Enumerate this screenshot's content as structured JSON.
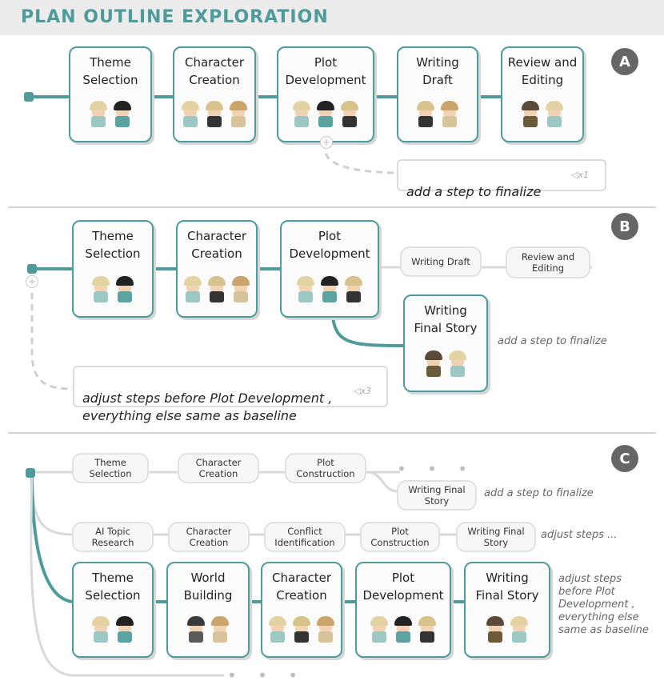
{
  "title": "PLAN OUTLINE EXPLORATION",
  "colors": {
    "accent": "#4f9b9b",
    "gray_line": "#d9d9d9",
    "badge": "#666666"
  },
  "sections": {
    "a": {
      "badge": "A",
      "nodes": [
        {
          "label": "Theme\nSelection",
          "agents": [
            "blonde",
            "dark"
          ]
        },
        {
          "label": "Character\nCreation",
          "agents": [
            "blonde",
            "bald",
            "spiky"
          ]
        },
        {
          "label": "Plot\nDevelopment",
          "agents": [
            "blonde",
            "dark",
            "bald"
          ]
        },
        {
          "label": "Writing\nDraft",
          "agents": [
            "bald",
            "spiky"
          ]
        },
        {
          "label": "Review and\nEditing",
          "agents": [
            "brown",
            "blonde"
          ]
        }
      ],
      "prompt": "add a step to finalize",
      "send": "x1"
    },
    "b": {
      "badge": "B",
      "nodes": [
        {
          "label": "Theme\nSelection",
          "agents": [
            "blonde",
            "dark"
          ]
        },
        {
          "label": "Character\nCreation",
          "agents": [
            "blonde",
            "bald",
            "spiky"
          ]
        },
        {
          "label": "Plot\nDevelopment",
          "agents": [
            "blonde",
            "dark",
            "bald"
          ]
        },
        {
          "label": "Writing\nFinal Story",
          "agents": [
            "brown",
            "blonde"
          ]
        }
      ],
      "pills": [
        "Writing Draft",
        "Review and\nEditing"
      ],
      "note": "add a step to finalize",
      "prompt": "adjust steps before Plot Development ,\neverything else same as baseline",
      "send": "x3"
    },
    "c": {
      "badge": "C",
      "row1": [
        "Theme\nSelection",
        "Character\nCreation",
        "Plot\nConstruction"
      ],
      "row1_branch": "Writing Final\nStory",
      "row1_note": "add a step to finalize",
      "row2": [
        "AI Topic\nResearch",
        "Character\nCreation",
        "Conflict\nIdentification",
        "Plot\nConstruction",
        "Writing Final\nStory"
      ],
      "row2_note": "adjust steps ...",
      "nodes": [
        {
          "label": "Theme\nSelection",
          "agents": [
            "blonde",
            "dark"
          ]
        },
        {
          "label": "World\nBuilding",
          "agents": [
            "horned",
            "spiky"
          ]
        },
        {
          "label": "Character\nCreation",
          "agents": [
            "blonde",
            "bald",
            "spiky"
          ]
        },
        {
          "label": "Plot\nDevelopment",
          "agents": [
            "blonde",
            "dark",
            "bald"
          ]
        },
        {
          "label": "Writing\nFinal Story",
          "agents": [
            "brown",
            "blonde"
          ]
        }
      ],
      "row3_note": "adjust steps\nbefore Plot\nDevelopment ,\neverything else\nsame as  baseline"
    }
  }
}
